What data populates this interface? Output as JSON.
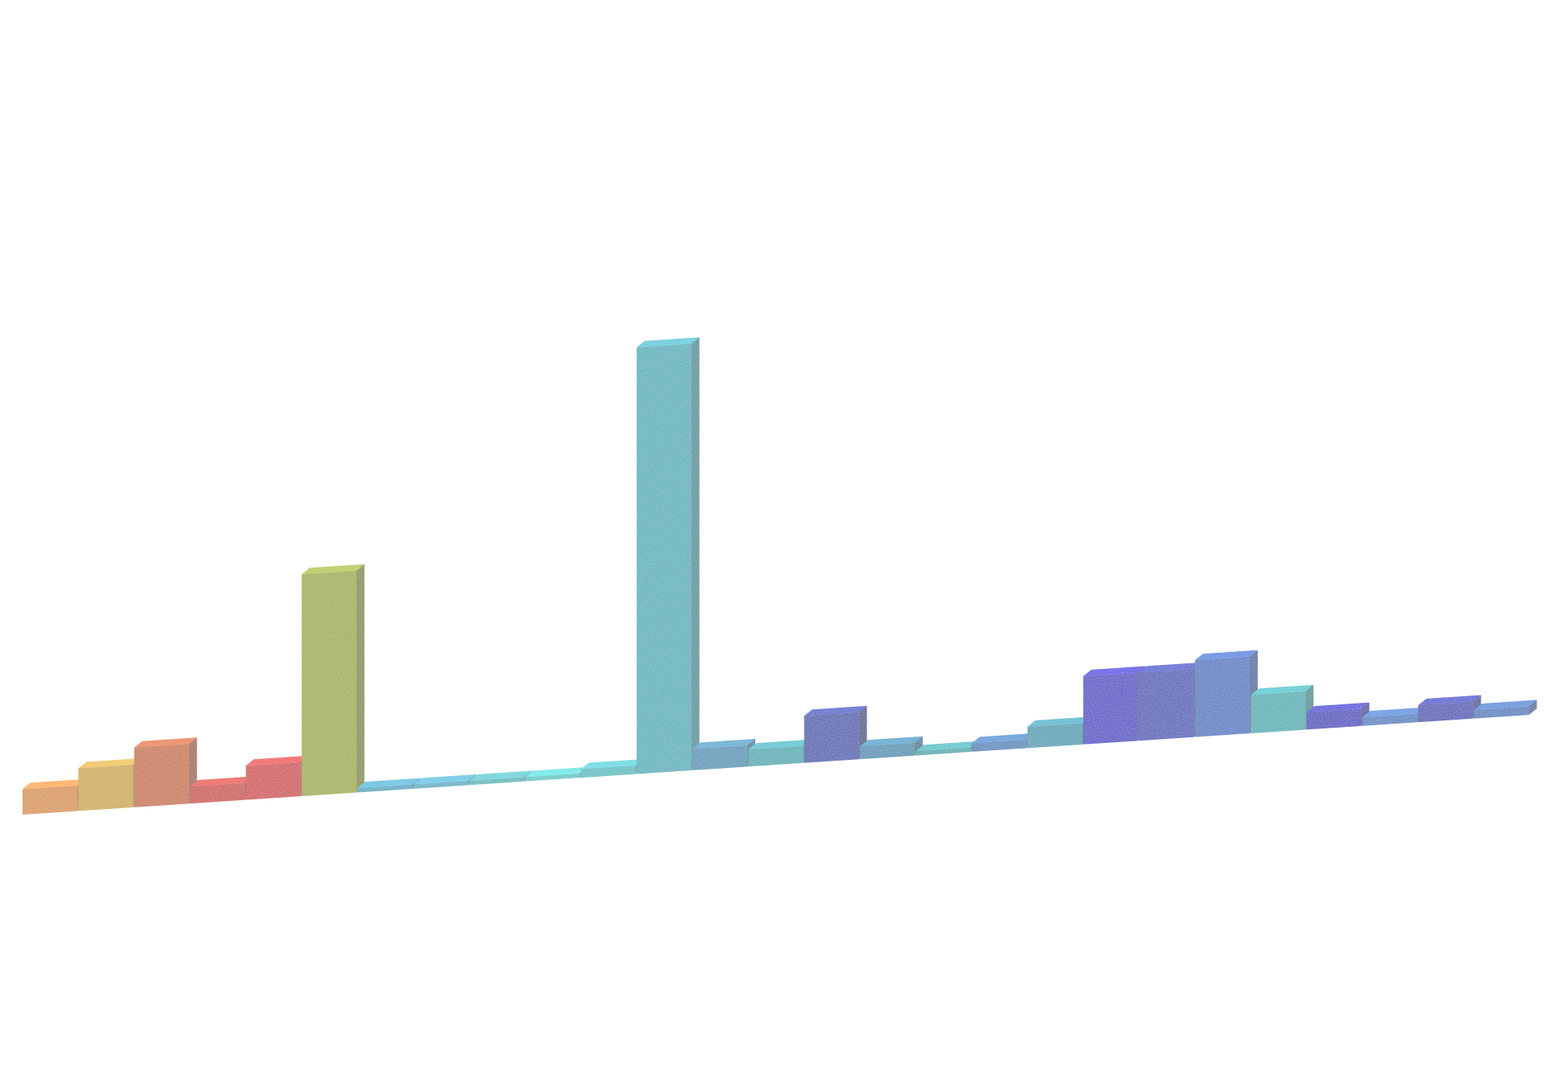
{
  "chart_data": {
    "type": "bar",
    "style": "3d-bars-on-receding-baseline",
    "grid": false,
    "legend": "none",
    "values": [
      3,
      5,
      7,
      2,
      4,
      26,
      0.5,
      0.5,
      0.5,
      0.5,
      1,
      50,
      2.5,
      2,
      5.5,
      1.5,
      0.5,
      1,
      2.5,
      8,
      8,
      9,
      4.5,
      2,
      1,
      2,
      1
    ],
    "colors": [
      "#d68a1e",
      "#c9a31a",
      "#c5601b",
      "#c8291c",
      "#cc2228",
      "#98a60f",
      "#2b9fbd",
      "#3aa6c0",
      "#39b0b6",
      "#3ec2c2",
      "#37b7bd",
      "#2fa9b7",
      "#2b8bb0",
      "#20a3ad",
      "#1b3ea8",
      "#2286ad",
      "#1fa1a8",
      "#2a79b6",
      "#2296ad",
      "#2413c0",
      "#1f3ab0",
      "#2a67bd",
      "#22a8ad",
      "#1a15b8",
      "#2c73bd",
      "#1e2fb0",
      "#2a6eb8"
    ],
    "ylim": [
      0,
      50
    ]
  }
}
